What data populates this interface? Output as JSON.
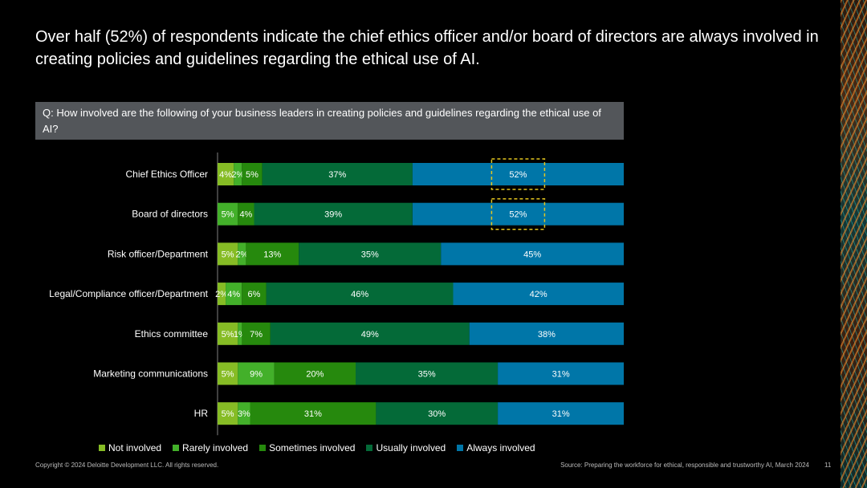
{
  "headline": "Over half (52%) of respondents indicate the chief ethics officer and/or board of directors are always involved in creating policies and guidelines regarding the ethical use of AI.",
  "question": "Q: How involved are the following of your business leaders in creating policies and guidelines regarding the ethical use of AI?",
  "footer": {
    "copyright": "Copyright © 2024 Deloitte Development LLC. All rights reserved.",
    "source": "Source: Preparing the workforce for ethical, responsible and trustworthy AI, March 2024",
    "page": "11"
  },
  "colors": {
    "not_involved": "#86bc25",
    "rarely_involved": "#43b02a",
    "sometimes_involved": "#26890d",
    "usually_involved": "#046a38",
    "always_involved": "#0076a8",
    "highlight": "#e3c51f"
  },
  "chart_data": {
    "type": "bar",
    "orientation": "horizontal-stacked",
    "title": "",
    "xlabel": "",
    "ylabel": "",
    "xlim": [
      0,
      100
    ],
    "grid": false,
    "legend_position": "bottom",
    "categories": [
      "Chief Ethics Officer",
      "Board of directors",
      "Risk officer/Department",
      "Legal/Compliance officer/Department",
      "Ethics committee",
      "Marketing communications",
      "HR"
    ],
    "series": [
      {
        "name": "Not involved",
        "values": [
          4,
          0,
          5,
          2,
          5,
          5,
          5
        ]
      },
      {
        "name": "Rarely involved",
        "values": [
          2,
          5,
          2,
          4,
          1,
          9,
          3
        ]
      },
      {
        "name": "Sometimes involved",
        "values": [
          5,
          4,
          13,
          6,
          7,
          20,
          31
        ]
      },
      {
        "name": "Usually involved",
        "values": [
          37,
          39,
          35,
          46,
          49,
          35,
          30
        ]
      },
      {
        "name": "Always involved",
        "values": [
          52,
          52,
          45,
          42,
          38,
          31,
          31
        ]
      }
    ],
    "highlighted": [
      [
        0,
        4
      ],
      [
        1,
        4
      ]
    ]
  }
}
